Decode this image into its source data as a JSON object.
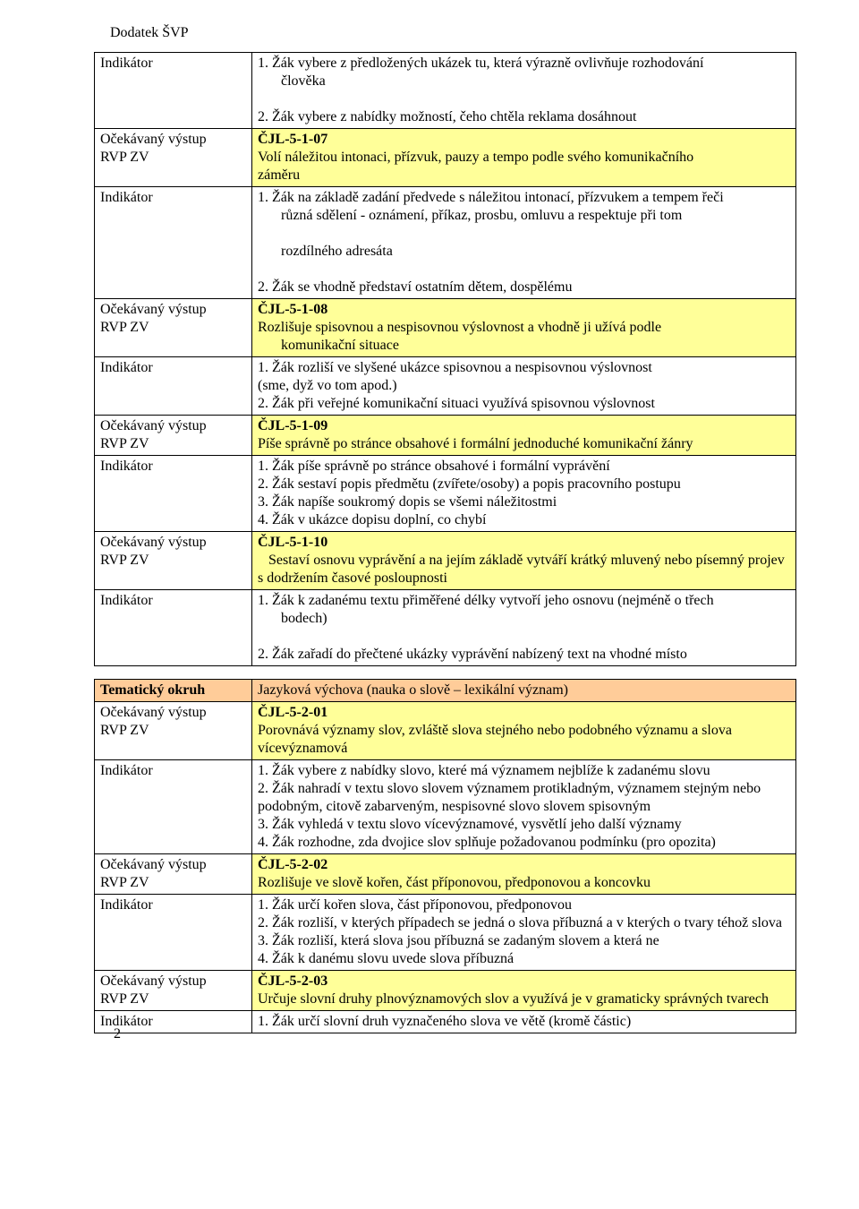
{
  "docHeader": "Dodatek ŠVP",
  "pageNumber": "2",
  "tables": [
    {
      "rows": [
        {
          "left": "",
          "right": [
            "1. Žák vybere z předložených ukázek tu, která výrazně ovlivňuje rozhodování",
            "člověka",
            "2. Žák vybere z nabídky možností, čeho chtěla reklama dosáhnout"
          ],
          "rightIndent": [
            false,
            true,
            false
          ]
        },
        {
          "left": "ČJL-5-1-07",
          "right": [
            "Volí náležitou intonaci, přízvuk, pauzy a tempo podle svého komunikačního",
            "záměru"
          ],
          "highlight": true
        },
        {
          "left": "",
          "right": [
            "1. Žák na základě zadání předvede s náležitou intonací, přízvukem a tempem řeči",
            "různá sdělení - oznámení, příkaz, prosbu, omluvu a respektuje při tom",
            "rozdílného adresáta",
            "2. Žák se vhodně představí ostatním dětem, dospělému"
          ],
          "rightIndent": [
            false,
            true,
            true,
            false
          ]
        },
        {
          "left": "ČJL-5-1-08",
          "right": [
            "Rozlišuje spisovnou a nespisovnou výslovnost a vhodně ji užívá podle",
            "komunikační situace"
          ],
          "highlight": true,
          "rightIndent": [
            false,
            true
          ]
        },
        {
          "left": "",
          "right": [
            "1. Žák rozliší ve slyšené ukázce spisovnou a nespisovnou výslovnost",
            "(sme, dyž vo tom apod.)",
            "2. Žák při veřejné komunikační situaci využívá spisovnou výslovnost"
          ]
        },
        {
          "left": "ČJL-5-1-09",
          "right": [
            "Píše správně po stránce obsahové i formální jednoduché komunikační žánry"
          ],
          "highlight": true
        },
        {
          "left": "",
          "right": [
            "1. Žák píše správně po stránce obsahové i formální vyprávění",
            "2. Žák sestaví popis předmětu (zvířete/osoby) a popis pracovního postupu",
            "3. Žák napíše soukromý dopis se všemi náležitostmi",
            "4. Žák v ukázce dopisu doplní, co chybí"
          ]
        },
        {
          "left": "ČJL-5-1-10",
          "right": [
            "Sestaví osnovu vyprávění a na jejím základě vytváří krátký mluvený nebo písemný projev s dodržením časové posloupnosti"
          ],
          "highlight": true,
          "sub": true
        },
        {
          "left": "",
          "right": [
            "1. Žák k zadanému textu přiměřené délky vytvoří jeho osnovu (nejméně o třech",
            "bodech)",
            "2. Žák zařadí do přečtené ukázky vyprávění nabízený text na vhodné místo"
          ],
          "rightIndent": [
            false,
            true,
            false
          ]
        }
      ],
      "leftTexts": [
        "Indikátor",
        "Očekávaný výstup\nRVP ZV",
        "Indikátor",
        "Očekávaný výstup\nRVP ZV",
        "Indikátor",
        "Očekávaný výstup\nRVP ZV",
        "Indikátor",
        "Očekávaný výstup\nRVP ZV",
        "Indikátor"
      ]
    },
    {
      "rows": [
        {
          "leftLabel": "Tematický okruh",
          "left": "",
          "right": [
            "Jazyková výchova (nauka o slově – lexikální význam)"
          ],
          "okruh": true,
          "bold": true
        },
        {
          "left": "ČJL-5-2-01",
          "right": [
            "Porovnává významy slov, zvláště slova stejného nebo podobného významu a slova vícevýznamová"
          ],
          "highlight": true
        },
        {
          "left": "",
          "right": [
            "1. Žák vybere z nabídky slovo, které má významem nejblíže k zadanému slovu",
            "2. Žák nahradí v textu slovo slovem významem protikladným, významem stejným nebo podobným, citově zabarveným, nespisovné slovo slovem spisovným",
            "3. Žák vyhledá v textu slovo vícevýznamové, vysvětlí jeho další významy",
            "4. Žák rozhodne, zda dvojice slov splňuje požadovanou podmínku (pro opozita)"
          ]
        },
        {
          "left": "ČJL-5-2-02",
          "right": [
            "Rozlišuje ve slově kořen, část příponovou, předponovou a koncovku"
          ],
          "highlight": true
        },
        {
          "left": "",
          "right": [
            "1. Žák určí kořen slova, část příponovou, předponovou",
            "2. Žák rozliší, v kterých případech se jedná o slova příbuzná a v kterých o tvary téhož slova",
            "3. Žák rozliší, která slova jsou příbuzná se zadaným slovem a která ne",
            "4. Žák k danému slovu uvede slova příbuzná"
          ]
        },
        {
          "left": "ČJL-5-2-03",
          "right": [
            "Určuje slovní druhy plnovýznamových slov a využívá je v gramaticky správných tvarech"
          ],
          "highlight": true
        },
        {
          "left": "",
          "right": [
            "1. Žák určí slovní druh vyznačeného slova ve větě (kromě částic)"
          ]
        }
      ],
      "leftTexts": [
        "Tematický okruh",
        "Očekávaný výstup\nRVP ZV",
        "Indikátor",
        "Očekávaný výstup\nRVP ZV",
        "Indikátor",
        "Očekávaný výstup\nRVP ZV",
        "Indikátor"
      ]
    }
  ]
}
